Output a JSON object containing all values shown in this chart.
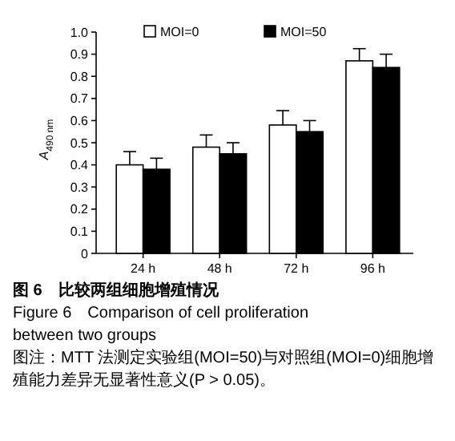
{
  "chart_data": {
    "type": "bar",
    "title": "图 6　比较两组细胞增殖情况",
    "subtitle": "Figure 6　Comparison of cell proliferation between two groups",
    "ylabel": "A$_{490 nm}$",
    "annotations": [
      "图注：MTT 法测定实验组(MOI=50)与对照组(MOI=0)细胞增殖能力差异无显著性意义(P > 0.05)。"
    ],
    "categories": [
      "24 h",
      "48 h",
      "72 h",
      "96 h"
    ],
    "series": [
      {
        "name": "MOI=0",
        "color": "#ffffff",
        "values": [
          0.4,
          0.48,
          0.58,
          0.87
        ],
        "errors": [
          [
            0.4,
            0.46
          ],
          [
            0.48,
            0.535
          ],
          [
            0.58,
            0.645
          ],
          [
            0.87,
            0.925
          ]
        ]
      },
      {
        "name": "MOI=50",
        "color": "#000000",
        "values": [
          0.38,
          0.45,
          0.55,
          0.84
        ],
        "errors": [
          [
            0.38,
            0.43
          ],
          [
            0.45,
            0.5
          ],
          [
            0.55,
            0.6
          ],
          [
            0.84,
            0.9
          ]
        ]
      }
    ],
    "ylim": [
      0,
      1
    ],
    "yticks": [
      0,
      0.1,
      0.2,
      0.3,
      0.4,
      0.5,
      0.6,
      0.7,
      0.8,
      0.9,
      {
        "value": 1,
        "label": "1.0"
      }
    ],
    "grid": false,
    "legend": "top"
  }
}
